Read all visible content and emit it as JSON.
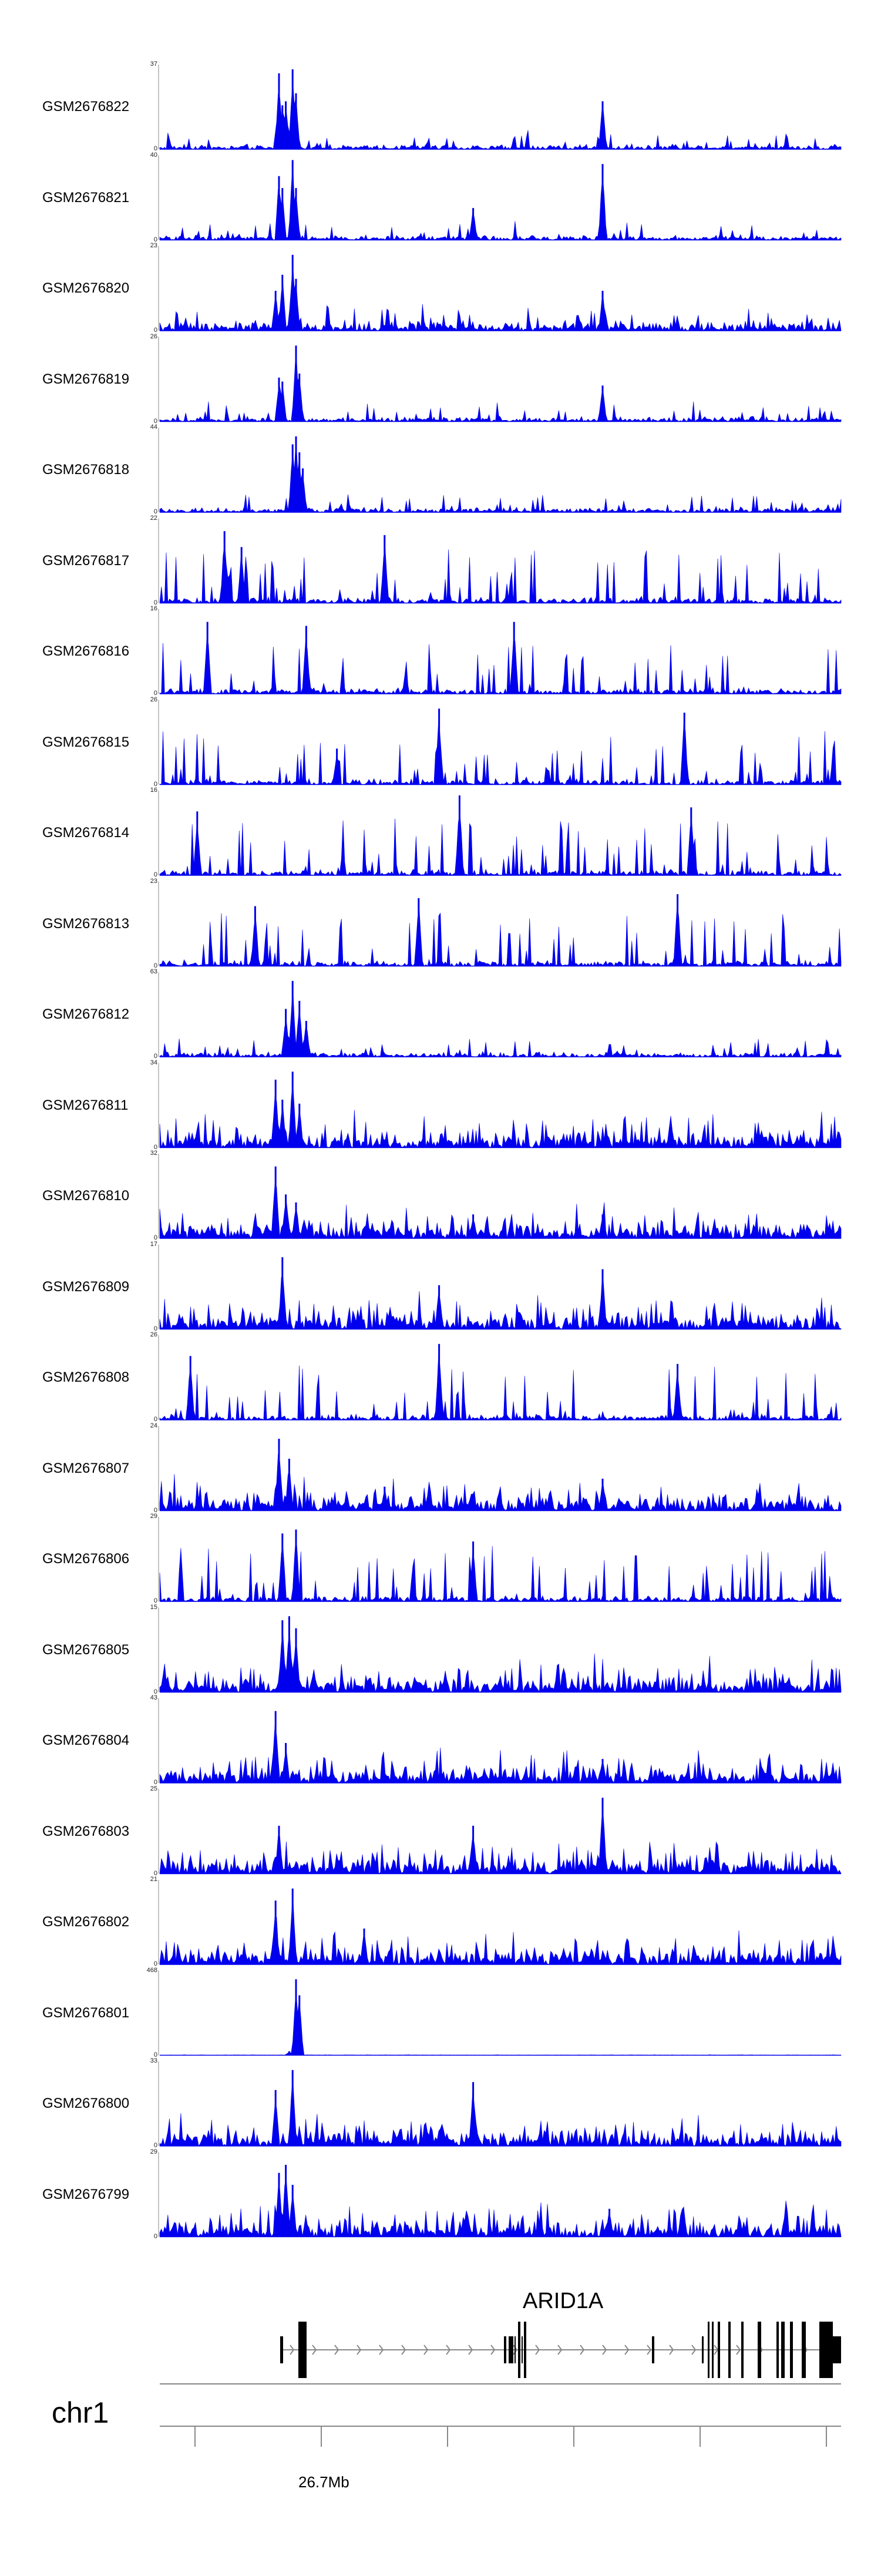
{
  "chart_data": {
    "type": "area",
    "genome": {
      "chromosome": "chr1",
      "axis_tick_label": "26.7Mb"
    },
    "gene": {
      "name": "ARID1A"
    },
    "colors": {
      "signal": "#0000ee",
      "gene": "#000000",
      "axis": "#888888"
    },
    "x_unit": "fraction_of_region",
    "tracks": [
      {
        "name": "GSM2676822",
        "ymax": "37",
        "y_min": "0",
        "style": "sparse",
        "peaks": [
          [
            0.175,
            0.95
          ],
          [
            0.18,
            0.55
          ],
          [
            0.185,
            0.6
          ],
          [
            0.195,
            1.0
          ],
          [
            0.2,
            0.7
          ],
          [
            0.65,
            0.6
          ]
        ]
      },
      {
        "name": "GSM2676821",
        "ymax": "40",
        "y_min": "0",
        "style": "sparse",
        "peaks": [
          [
            0.175,
            0.8
          ],
          [
            0.18,
            0.65
          ],
          [
            0.195,
            1.0
          ],
          [
            0.2,
            0.65
          ],
          [
            0.46,
            0.4
          ],
          [
            0.65,
            0.95
          ]
        ]
      },
      {
        "name": "GSM2676820",
        "ymax": "23",
        "y_min": "0",
        "style": "medium",
        "peaks": [
          [
            0.17,
            0.5
          ],
          [
            0.18,
            0.7
          ],
          [
            0.195,
            0.95
          ],
          [
            0.2,
            0.65
          ],
          [
            0.65,
            0.5
          ]
        ]
      },
      {
        "name": "GSM2676819",
        "ymax": "26",
        "y_min": "0",
        "style": "sparse",
        "peaks": [
          [
            0.175,
            0.55
          ],
          [
            0.18,
            0.5
          ],
          [
            0.2,
            0.95
          ],
          [
            0.205,
            0.6
          ],
          [
            0.65,
            0.45
          ]
        ]
      },
      {
        "name": "GSM2676818",
        "ymax": "44",
        "y_min": "0",
        "style": "sparse",
        "peaks": [
          [
            0.195,
            0.85
          ],
          [
            0.2,
            0.95
          ],
          [
            0.205,
            0.75
          ],
          [
            0.21,
            0.55
          ]
        ]
      },
      {
        "name": "GSM2676817",
        "ymax": "22",
        "y_min": "0",
        "style": "spiky",
        "peaks": [
          [
            0.095,
            0.9
          ],
          [
            0.12,
            0.7
          ],
          [
            0.33,
            0.85
          ]
        ]
      },
      {
        "name": "GSM2676816",
        "ymax": "16",
        "y_min": "0",
        "style": "spiky",
        "peaks": [
          [
            0.07,
            0.9
          ],
          [
            0.215,
            0.85
          ],
          [
            0.52,
            0.9
          ]
        ]
      },
      {
        "name": "GSM2676815",
        "ymax": "26",
        "y_min": "0",
        "style": "spiky",
        "peaks": [
          [
            0.26,
            0.45
          ],
          [
            0.41,
            0.95
          ],
          [
            0.77,
            0.9
          ]
        ]
      },
      {
        "name": "GSM2676814",
        "ymax": "16",
        "y_min": "0",
        "style": "spiky",
        "peaks": [
          [
            0.055,
            0.8
          ],
          [
            0.44,
            1.0
          ],
          [
            0.78,
            0.85
          ]
        ]
      },
      {
        "name": "GSM2676813",
        "ymax": "23",
        "y_min": "0",
        "style": "spiky",
        "peaks": [
          [
            0.14,
            0.75
          ],
          [
            0.38,
            0.85
          ],
          [
            0.76,
            0.9
          ]
        ]
      },
      {
        "name": "GSM2676812",
        "ymax": "63",
        "y_min": "0",
        "style": "sparse",
        "peaks": [
          [
            0.185,
            0.6
          ],
          [
            0.195,
            0.95
          ],
          [
            0.205,
            0.7
          ],
          [
            0.215,
            0.45
          ]
        ]
      },
      {
        "name": "GSM2676811",
        "ymax": "34",
        "y_min": "0",
        "style": "dense",
        "peaks": [
          [
            0.17,
            0.85
          ],
          [
            0.18,
            0.6
          ],
          [
            0.195,
            0.95
          ],
          [
            0.205,
            0.55
          ]
        ]
      },
      {
        "name": "GSM2676810",
        "ymax": "32",
        "y_min": "0",
        "style": "dense",
        "peaks": [
          [
            0.17,
            0.9
          ],
          [
            0.185,
            0.55
          ],
          [
            0.2,
            0.45
          ],
          [
            0.46,
            0.3
          ],
          [
            0.65,
            0.3
          ]
        ]
      },
      {
        "name": "GSM2676809",
        "ymax": "17",
        "y_min": "0",
        "style": "dense",
        "peaks": [
          [
            0.18,
            0.9
          ],
          [
            0.41,
            0.55
          ],
          [
            0.65,
            0.75
          ]
        ]
      },
      {
        "name": "GSM2676808",
        "ymax": "26",
        "y_min": "0",
        "style": "spiky",
        "peaks": [
          [
            0.045,
            0.8
          ],
          [
            0.41,
            0.95
          ],
          [
            0.76,
            0.7
          ]
        ]
      },
      {
        "name": "GSM2676807",
        "ymax": "24",
        "y_min": "0",
        "style": "dense",
        "peaks": [
          [
            0.175,
            0.9
          ],
          [
            0.19,
            0.65
          ],
          [
            0.33,
            0.3
          ],
          [
            0.65,
            0.4
          ]
        ]
      },
      {
        "name": "GSM2676806",
        "ymax": "29",
        "y_min": "0",
        "style": "spiky",
        "peaks": [
          [
            0.18,
            0.85
          ],
          [
            0.2,
            0.9
          ],
          [
            0.46,
            0.75
          ]
        ]
      },
      {
        "name": "GSM2676805",
        "ymax": "15",
        "y_min": "0",
        "style": "dense",
        "peaks": [
          [
            0.18,
            0.9
          ],
          [
            0.19,
            0.95
          ],
          [
            0.2,
            0.8
          ]
        ]
      },
      {
        "name": "GSM2676804",
        "ymax": "43",
        "y_min": "0",
        "style": "dense",
        "peaks": [
          [
            0.17,
            0.9
          ],
          [
            0.185,
            0.5
          ],
          [
            0.65,
            0.3
          ]
        ]
      },
      {
        "name": "GSM2676803",
        "ymax": "25",
        "y_min": "0",
        "style": "dense",
        "peaks": [
          [
            0.175,
            0.6
          ],
          [
            0.46,
            0.6
          ],
          [
            0.65,
            0.95
          ]
        ]
      },
      {
        "name": "GSM2676802",
        "ymax": "21",
        "y_min": "0",
        "style": "dense",
        "peaks": [
          [
            0.17,
            0.8
          ],
          [
            0.195,
            0.95
          ],
          [
            0.3,
            0.45
          ]
        ]
      },
      {
        "name": "GSM2676801",
        "ymax": "468",
        "y_min": "0",
        "style": "flat",
        "peaks": [
          [
            0.19,
            0.05
          ],
          [
            0.2,
            0.95
          ],
          [
            0.205,
            0.75
          ]
        ]
      },
      {
        "name": "GSM2676800",
        "ymax": "33",
        "y_min": "0",
        "style": "dense",
        "peaks": [
          [
            0.17,
            0.7
          ],
          [
            0.195,
            0.95
          ],
          [
            0.46,
            0.8
          ]
        ]
      },
      {
        "name": "GSM2676799",
        "ymax": "29",
        "y_min": "0",
        "style": "dense",
        "peaks": [
          [
            0.175,
            0.8
          ],
          [
            0.185,
            0.9
          ],
          [
            0.195,
            0.65
          ],
          [
            0.66,
            0.35
          ]
        ]
      }
    ]
  }
}
